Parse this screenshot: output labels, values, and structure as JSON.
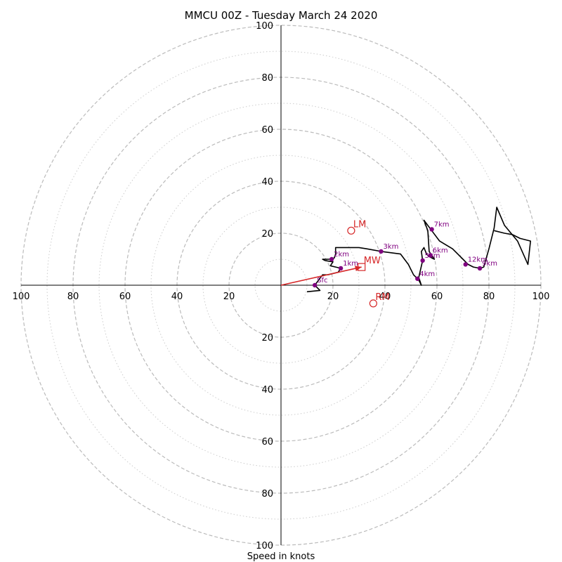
{
  "chart_data": {
    "type": "hodograph",
    "title": "MMCU 00Z - Tuesday March 24 2020",
    "xlabel": "Speed in knots",
    "range": [
      -100,
      100
    ],
    "tick_labels": [
      "100",
      "80",
      "60",
      "40",
      "20",
      "20",
      "40",
      "60",
      "80",
      "100"
    ],
    "tick_values": [
      -100,
      -80,
      -60,
      -40,
      -20,
      20,
      40,
      60,
      80,
      100
    ],
    "major_rings": [
      20,
      40,
      60,
      80,
      100
    ],
    "minor_rings": [
      10,
      30,
      50,
      70,
      90
    ],
    "grid": true,
    "colors": {
      "profile": "#000000",
      "heights": "#800080",
      "motion": "#d62728",
      "ring_major": "#bbbbbb",
      "ring_minor": "#cccccc"
    },
    "profile": [
      [
        10,
        -2.5
      ],
      [
        15,
        -2
      ],
      [
        13,
        0
      ],
      [
        16,
        4
      ],
      [
        18,
        4
      ],
      [
        22,
        5
      ],
      [
        23,
        6.5
      ],
      [
        21,
        7
      ],
      [
        19,
        7.5
      ],
      [
        20,
        9
      ],
      [
        17,
        9.5
      ],
      [
        16,
        10
      ],
      [
        19,
        10
      ],
      [
        20.5,
        10.5
      ],
      [
        21,
        12
      ],
      [
        21,
        14.5
      ],
      [
        30,
        14.5
      ],
      [
        33,
        14
      ],
      [
        38.5,
        13
      ],
      [
        46,
        12
      ],
      [
        49,
        8
      ],
      [
        51,
        4
      ],
      [
        52,
        3
      ],
      [
        53,
        2
      ],
      [
        54,
        0
      ],
      [
        53,
        3
      ],
      [
        54.5,
        9.5
      ],
      [
        54,
        13
      ],
      [
        55,
        14.5
      ],
      [
        56,
        12
      ],
      [
        57,
        11
      ],
      [
        59,
        10
      ],
      [
        57,
        13
      ],
      [
        56.5,
        21
      ],
      [
        55,
        25
      ],
      [
        58,
        21
      ],
      [
        61,
        17
      ],
      [
        66,
        14
      ],
      [
        68,
        12
      ],
      [
        70,
        10
      ],
      [
        72,
        8
      ],
      [
        74,
        7
      ],
      [
        76.5,
        6.5
      ],
      [
        78,
        7
      ],
      [
        80,
        14
      ],
      [
        82,
        22
      ],
      [
        83,
        30
      ],
      [
        86,
        23
      ],
      [
        91,
        17
      ],
      [
        95,
        8
      ],
      [
        96,
        17
      ],
      [
        92,
        18
      ],
      [
        89,
        19.5
      ],
      [
        86,
        20
      ],
      [
        82,
        21
      ]
    ],
    "heights": [
      {
        "label": "Sfc",
        "u": 13,
        "v": 0
      },
      {
        "label": "1km",
        "u": 23,
        "v": 6.5
      },
      {
        "label": "2km",
        "u": 19.5,
        "v": 10
      },
      {
        "label": "3km",
        "u": 38.5,
        "v": 13
      },
      {
        "label": "4km",
        "u": 52.5,
        "v": 2.5
      },
      {
        "label": "5km",
        "u": 54.5,
        "v": 9.5
      },
      {
        "label": "6km",
        "u": 57.5,
        "v": 11.5
      },
      {
        "label": "7km",
        "u": 58,
        "v": 21.5
      },
      {
        "label": "12km",
        "u": 71,
        "v": 8
      },
      {
        "label": "9km",
        "u": 76.5,
        "v": 6.5
      }
    ],
    "storm_motion": [
      {
        "label": "LM",
        "u": 27,
        "v": 21,
        "marker": "circle"
      },
      {
        "label": "MW",
        "u": 31,
        "v": 7,
        "marker": "square"
      },
      {
        "label": "RM",
        "u": 35.5,
        "v": -7,
        "marker": "circle"
      }
    ],
    "mean_wind_vector": {
      "u": 31,
      "v": 7
    }
  }
}
